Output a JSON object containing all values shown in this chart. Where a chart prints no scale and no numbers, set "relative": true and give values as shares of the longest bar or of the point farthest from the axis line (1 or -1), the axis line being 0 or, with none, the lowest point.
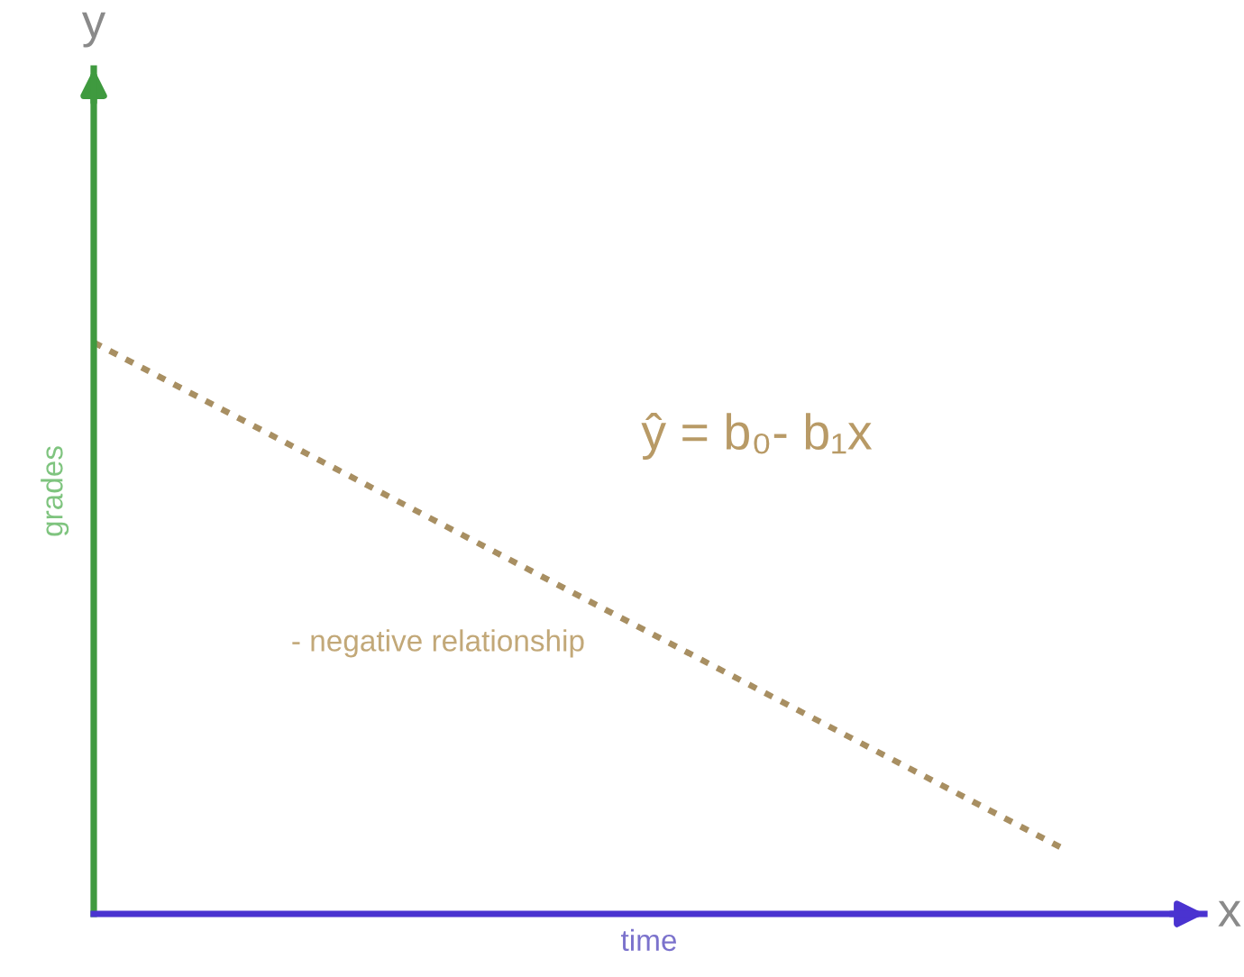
{
  "chart_data": {
    "type": "line",
    "relative": true,
    "categories": [
      null,
      null
    ],
    "series": [
      {
        "color": "#a88f62",
        "values": [
          1,
          0.11
        ]
      }
    ],
    "line_style": "dotted",
    "marker": "none",
    "grid": false,
    "tick_labels": false,
    "xlabel": "time",
    "ylabel": "grades",
    "annotations": [
      "y",
      "x",
      "ŷ = b₀- b₁x",
      "- negative relationship"
    ]
  }
}
